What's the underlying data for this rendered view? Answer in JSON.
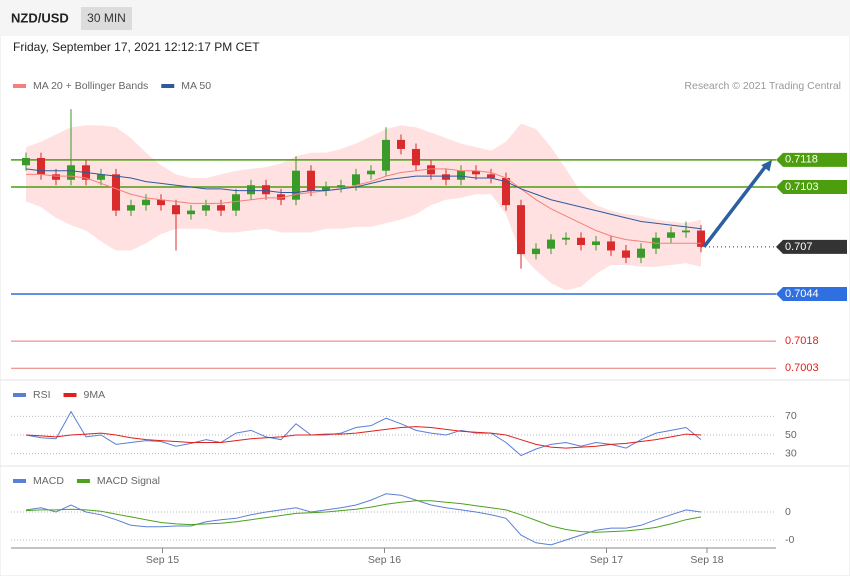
{
  "header": {
    "symbol": "NZD/USD",
    "interval": "30 MIN",
    "timestamp": "Friday, September 17, 2021 12:12:17 PM CET",
    "credit": "Research © 2021 Trading Central"
  },
  "chart_data": [
    {
      "type": "candlestick",
      "xlim": [
        -1,
        50
      ],
      "ylim": [
        0.6996,
        0.7151
      ],
      "up_color": "#3a9a2a",
      "down_color": "#d92b2b",
      "open": [
        0.7115,
        0.7119,
        0.711,
        0.7107,
        0.7115,
        0.7107,
        0.711,
        0.709,
        0.7093,
        0.7096,
        0.7093,
        0.7088,
        0.709,
        0.7093,
        0.709,
        0.7099,
        0.7104,
        0.7099,
        0.7096,
        0.7112,
        0.7101,
        0.7103,
        0.7104,
        0.711,
        0.7112,
        0.7129,
        0.7124,
        0.7115,
        0.711,
        0.7107,
        0.7112,
        0.711,
        0.7108,
        0.7093,
        0.7066,
        0.7069,
        0.7074,
        0.7075,
        0.7071,
        0.7073,
        0.7068,
        0.7064,
        0.7069,
        0.7075,
        0.7078,
        0.7079
      ],
      "high": [
        0.7122,
        0.7122,
        0.7113,
        0.7146,
        0.7118,
        0.7113,
        0.7113,
        0.7096,
        0.7099,
        0.7099,
        0.7096,
        0.7093,
        0.7096,
        0.7096,
        0.7102,
        0.7107,
        0.7107,
        0.7102,
        0.712,
        0.7115,
        0.7106,
        0.7107,
        0.7113,
        0.7115,
        0.7136,
        0.7132,
        0.7127,
        0.7118,
        0.7113,
        0.7115,
        0.7115,
        0.7113,
        0.7111,
        0.7096,
        0.7072,
        0.7077,
        0.7078,
        0.7078,
        0.7076,
        0.7076,
        0.7071,
        0.7072,
        0.7078,
        0.7081,
        0.7084,
        0.7082
      ],
      "low": [
        0.7112,
        0.7107,
        0.7104,
        0.7104,
        0.7104,
        0.7104,
        0.7087,
        0.7087,
        0.709,
        0.709,
        0.7068,
        0.7085,
        0.7087,
        0.7087,
        0.7087,
        0.7096,
        0.7096,
        0.7093,
        0.7093,
        0.7098,
        0.7098,
        0.71,
        0.7101,
        0.7107,
        0.7109,
        0.7121,
        0.7112,
        0.7107,
        0.7104,
        0.7104,
        0.7107,
        0.7105,
        0.709,
        0.7058,
        0.7063,
        0.7066,
        0.7071,
        0.7068,
        0.7068,
        0.7065,
        0.7061,
        0.7061,
        0.7066,
        0.7072,
        0.7075,
        0.7067
      ],
      "close": [
        0.7119,
        0.711,
        0.7107,
        0.7115,
        0.7107,
        0.711,
        0.709,
        0.7093,
        0.7096,
        0.7093,
        0.7088,
        0.709,
        0.7093,
        0.709,
        0.7099,
        0.7104,
        0.7099,
        0.7096,
        0.7112,
        0.7101,
        0.7103,
        0.7104,
        0.711,
        0.7112,
        0.7129,
        0.7124,
        0.7115,
        0.711,
        0.7107,
        0.7112,
        0.711,
        0.7108,
        0.7093,
        0.7066,
        0.7069,
        0.7074,
        0.7075,
        0.7071,
        0.7073,
        0.7068,
        0.7064,
        0.7069,
        0.7075,
        0.7078,
        0.7079,
        0.707
      ],
      "series": [
        {
          "name": "MA 20 + Bollinger Bands",
          "color": "#f4807a",
          "band_color": "#ffe1e1",
          "values": [
            0.711,
            0.711,
            0.7109,
            0.7109,
            0.7108,
            0.7105,
            0.7102,
            0.7099,
            0.7097,
            0.7096,
            0.7095,
            0.7094,
            0.7094,
            0.7094,
            0.7095,
            0.7096,
            0.7097,
            0.7097,
            0.7099,
            0.71,
            0.7101,
            0.7102,
            0.7104,
            0.7106,
            0.7109,
            0.7111,
            0.7112,
            0.7113,
            0.7113,
            0.7112,
            0.7112,
            0.7111,
            0.7108,
            0.7102,
            0.7096,
            0.7091,
            0.7087,
            0.7083,
            0.7079,
            0.7076,
            0.7074,
            0.7073,
            0.7072,
            0.7072,
            0.7072,
            0.7072
          ],
          "upper": [
            0.7125,
            0.7128,
            0.7132,
            0.7136,
            0.7137,
            0.7137,
            0.7136,
            0.713,
            0.7122,
            0.7115,
            0.711,
            0.7108,
            0.7108,
            0.711,
            0.7112,
            0.7113,
            0.7114,
            0.7116,
            0.712,
            0.7122,
            0.7122,
            0.7124,
            0.7127,
            0.7131,
            0.7135,
            0.7137,
            0.7136,
            0.7133,
            0.713,
            0.7127,
            0.7125,
            0.7123,
            0.7128,
            0.7138,
            0.7135,
            0.7125,
            0.7113,
            0.71,
            0.7093,
            0.709,
            0.7088,
            0.7087,
            0.7085,
            0.7084,
            0.7083,
            0.7085
          ],
          "lower": [
            0.7095,
            0.7092,
            0.7086,
            0.7082,
            0.7079,
            0.7073,
            0.7068,
            0.7068,
            0.7072,
            0.7077,
            0.708,
            0.708,
            0.708,
            0.7078,
            0.7078,
            0.7079,
            0.708,
            0.7078,
            0.7078,
            0.7078,
            0.708,
            0.708,
            0.7081,
            0.7081,
            0.7083,
            0.7085,
            0.7088,
            0.7093,
            0.7096,
            0.7097,
            0.7099,
            0.7099,
            0.7088,
            0.7066,
            0.7057,
            0.705,
            0.7046,
            0.7048,
            0.7055,
            0.706,
            0.706,
            0.7059,
            0.7059,
            0.706,
            0.7061,
            0.7059
          ]
        },
        {
          "name": "MA 50",
          "color": "#2f5b9b",
          "values": [
            0.7113,
            0.7112,
            0.7112,
            0.7112,
            0.7111,
            0.711,
            0.7109,
            0.7108,
            0.7106,
            0.7105,
            0.7104,
            0.7103,
            0.7102,
            0.7102,
            0.7101,
            0.7101,
            0.7101,
            0.71,
            0.71,
            0.7101,
            0.7101,
            0.7102,
            0.7103,
            0.7105,
            0.7107,
            0.7108,
            0.7109,
            0.7109,
            0.7109,
            0.7109,
            0.7108,
            0.7108,
            0.7106,
            0.7102,
            0.7099,
            0.7096,
            0.7094,
            0.7092,
            0.709,
            0.7088,
            0.7086,
            0.7084,
            0.7083,
            0.7082,
            0.7081,
            0.708
          ]
        }
      ],
      "levels": [
        {
          "value": 0.7118,
          "color": "#4c9e0f",
          "style": "box"
        },
        {
          "value": 0.7103,
          "color": "#4c9e0f",
          "style": "box"
        },
        {
          "value": 0.707,
          "color": "#333333",
          "style": "current"
        },
        {
          "value": 0.7044,
          "color": "#2f6fe0",
          "style": "box"
        },
        {
          "value": 0.7018,
          "color": "#e0201c",
          "style": "text"
        },
        {
          "value": 0.7003,
          "color": "#e0201c",
          "style": "text"
        }
      ]
    },
    {
      "type": "line",
      "xlim": [
        -1,
        50
      ],
      "ylim": [
        20,
        80
      ],
      "yticks": [
        70,
        50,
        30
      ],
      "series": [
        {
          "name": "RSI",
          "color": "#5b7fd6",
          "values": [
            50,
            47,
            46,
            75,
            48,
            50,
            40,
            42,
            44,
            43,
            38,
            41,
            45,
            42,
            52,
            55,
            48,
            45,
            62,
            50,
            50,
            52,
            58,
            60,
            68,
            62,
            55,
            52,
            50,
            55,
            52,
            52,
            42,
            28,
            35,
            40,
            42,
            38,
            42,
            40,
            36,
            45,
            52,
            55,
            58,
            45
          ]
        },
        {
          "name": "9MA",
          "color": "#e0201c",
          "values": [
            50,
            49,
            48,
            50,
            51,
            52,
            50,
            47,
            45,
            44,
            43,
            42,
            42,
            42,
            44,
            46,
            47,
            48,
            50,
            50,
            51,
            51,
            52,
            54,
            56,
            58,
            59,
            58,
            56,
            54,
            53,
            52,
            50,
            45,
            40,
            37,
            36,
            37,
            38,
            40,
            41,
            43,
            45,
            48,
            51,
            50
          ]
        }
      ]
    },
    {
      "type": "line",
      "xlim": [
        -1,
        50
      ],
      "ylim": [
        -0.00054,
        0.0006
      ],
      "yticks": [
        {
          "value": 0,
          "label": "0"
        },
        {
          "value": -0.0004,
          "label": "-0"
        }
      ],
      "xticks": [
        {
          "value": 9.1,
          "label": "Sep 15"
        },
        {
          "value": 23.9,
          "label": "Sep 16"
        },
        {
          "value": 38.7,
          "label": "Sep 17"
        },
        {
          "value": 45.4,
          "label": "Sep 18"
        }
      ],
      "series": [
        {
          "name": "MACD",
          "color": "#5b7fd6",
          "values": [
            3e-05,
            6e-05,
            0,
            0.0001,
            0,
            -4e-05,
            -0.00011,
            -0.00019,
            -0.00021,
            -0.00021,
            -0.0002,
            -0.0002,
            -0.00014,
            -0.00011,
            -9e-05,
            -4e-05,
            0,
            3e-05,
            6e-05,
            0,
            3e-05,
            6e-05,
            0.0001,
            0.00017,
            0.00026,
            0.00024,
            0.00017,
            0.0001,
            6e-05,
            3e-05,
            0,
            -4e-05,
            -9e-05,
            -0.00033,
            -0.00044,
            -0.00047,
            -0.0004,
            -0.00033,
            -0.00026,
            -0.00023,
            -0.00023,
            -0.00019,
            -0.00011,
            -4e-05,
            3e-05,
            0
          ]
        },
        {
          "name": "MACD Signal",
          "color": "#4da21e",
          "values": [
            2e-05,
            3e-05,
            3e-05,
            4e-05,
            3e-05,
            1e-05,
            -3e-05,
            -7e-05,
            -0.00011,
            -0.00015,
            -0.00017,
            -0.00018,
            -0.00017,
            -0.00016,
            -0.00014,
            -0.00011,
            -8e-05,
            -5e-05,
            -2e-05,
            -1e-05,
            0,
            2e-05,
            4e-05,
            7e-05,
            0.00011,
            0.00014,
            0.00016,
            0.00016,
            0.00014,
            0.00012,
            9e-05,
            6e-05,
            3e-05,
            -4e-05,
            -0.00012,
            -0.0002,
            -0.00025,
            -0.00028,
            -0.00029,
            -0.00028,
            -0.00027,
            -0.00025,
            -0.00022,
            -0.00017,
            -0.00011,
            -7e-05
          ]
        }
      ]
    }
  ]
}
